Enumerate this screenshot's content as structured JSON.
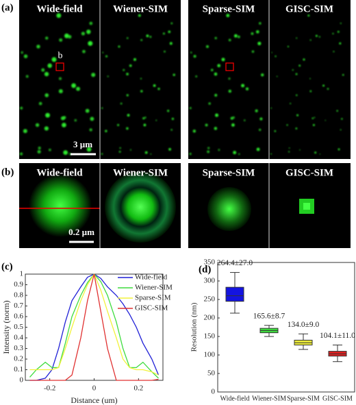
{
  "panels": {
    "a": {
      "label": "(a)",
      "titles": [
        "Wide-field",
        "Wiener-SIM",
        "Sparse-SIM",
        "GISC-SIM"
      ],
      "roi_label": "b",
      "scale_bar": "3 µm"
    },
    "b": {
      "label": "(b)",
      "titles": [
        "Wide-field",
        "Wiener-SIM",
        "Sparse-SIM",
        "GISC-SIM"
      ],
      "scale_bar": "0.2 µm"
    }
  },
  "chart_data": [
    {
      "type": "line",
      "panel_label": "(c)",
      "xlabel": "Distance (um)",
      "ylabel": "Intensity (norm)",
      "x": [
        -0.29,
        -0.26,
        -0.22,
        -0.19,
        -0.16,
        -0.13,
        -0.1,
        -0.06,
        -0.03,
        0,
        0.03,
        0.06,
        0.1,
        0.13,
        0.16,
        0.19,
        0.22,
        0.26,
        0.29
      ],
      "series": [
        {
          "name": "Wide-field",
          "color": "#1f1fd6",
          "values": [
            0,
            0,
            0.02,
            0.1,
            0.3,
            0.55,
            0.75,
            0.88,
            0.97,
            1,
            0.96,
            0.88,
            0.8,
            0.72,
            0.62,
            0.5,
            0.35,
            0.2,
            0.05
          ]
        },
        {
          "name": "Wiener-SIM",
          "color": "#3ddc3d",
          "values": [
            0.03,
            0.1,
            0.17,
            0.12,
            0.12,
            0.35,
            0.6,
            0.8,
            0.92,
            1,
            0.93,
            0.8,
            0.55,
            0.3,
            0.12,
            0.12,
            0.17,
            0.08,
            0.02
          ]
        },
        {
          "name": "Sparse-SIM",
          "color": "#f2f23a",
          "values": [
            0.1,
            0.1,
            0.1,
            0.1,
            0.12,
            0.3,
            0.5,
            0.75,
            0.9,
            1,
            0.85,
            0.65,
            0.4,
            0.2,
            0.12,
            0.1,
            0.1,
            0.08,
            0.05
          ]
        },
        {
          "name": "GISC-SIM",
          "color": "#e03030",
          "values": [
            0,
            0,
            0,
            0,
            0,
            0,
            0.05,
            0.4,
            0.75,
            1,
            0.65,
            0.3,
            0,
            0,
            0,
            0,
            0,
            0,
            0.01
          ]
        }
      ],
      "xlim": [
        -0.31,
        0.31
      ],
      "xticks": [
        -0.2,
        0,
        0.2
      ],
      "ylim": [
        0,
        1
      ],
      "yticks": [
        0,
        0.1,
        0.2,
        0.3,
        0.4,
        0.5,
        0.6,
        0.7,
        0.8,
        0.9,
        1
      ]
    },
    {
      "type": "box",
      "panel_label": "(d)",
      "ylabel": "Resolution (nm)",
      "categories": [
        "Wide-field",
        "Wiener-SIM",
        "Sparse-SIM",
        "GISC-SIM"
      ],
      "colors": [
        "#1414e0",
        "#3ee03e",
        "#f0f03a",
        "#e02020"
      ],
      "whisker_low": [
        213,
        150,
        115,
        82
      ],
      "q1": [
        245,
        160,
        127,
        97
      ],
      "median": [
        260,
        166,
        133,
        103
      ],
      "q3": [
        283,
        172,
        140,
        110
      ],
      "whisker_high": [
        323,
        180,
        157,
        127
      ],
      "annotations": [
        "264.4±27.0",
        "165.6±8.7",
        "134.0±9.0",
        "104.1±11.0"
      ],
      "ylim": [
        0,
        350
      ],
      "yticks": [
        0,
        50,
        100,
        150,
        200,
        250,
        300,
        350
      ]
    }
  ]
}
